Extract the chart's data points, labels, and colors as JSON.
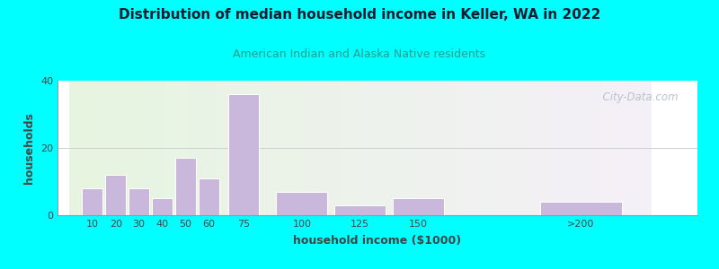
{
  "title": "Distribution of median household income in Keller, WA in 2022",
  "subtitle": "American Indian and Alaska Native residents",
  "xlabel": "household income ($1000)",
  "ylabel": "households",
  "bar_centers": [
    10,
    20,
    30,
    40,
    50,
    60,
    75,
    100,
    125,
    150,
    220
  ],
  "bar_widths": [
    10,
    10,
    10,
    10,
    10,
    10,
    15,
    25,
    25,
    25,
    40
  ],
  "bar_labels": [
    "10",
    "20",
    "30",
    "40",
    "50",
    "60",
    "75",
    "100",
    "125",
    "150",
    ">200"
  ],
  "bar_values": [
    8,
    12,
    8,
    5,
    17,
    11,
    36,
    7,
    3,
    5,
    4
  ],
  "bar_color": "#c9b8dc",
  "bar_edge_color": "#ffffff",
  "ylim": [
    0,
    40
  ],
  "yticks": [
    0,
    20,
    40
  ],
  "xlim": [
    0,
    250
  ],
  "xtick_positions": [
    10,
    20,
    30,
    40,
    50,
    60,
    75,
    100,
    125,
    150,
    220
  ],
  "bg_color_left": "#e6f5e0",
  "bg_color_right": "#f5f0f8",
  "outer_bg_color": "#00ffff",
  "title_color": "#1a1a2e",
  "subtitle_color": "#2a9d8f",
  "axis_label_color": "#444444",
  "tick_color": "#444444",
  "watermark_text": "  City-Data.com",
  "watermark_color": "#b0b8c8",
  "grid_color": "#d0d0d0"
}
